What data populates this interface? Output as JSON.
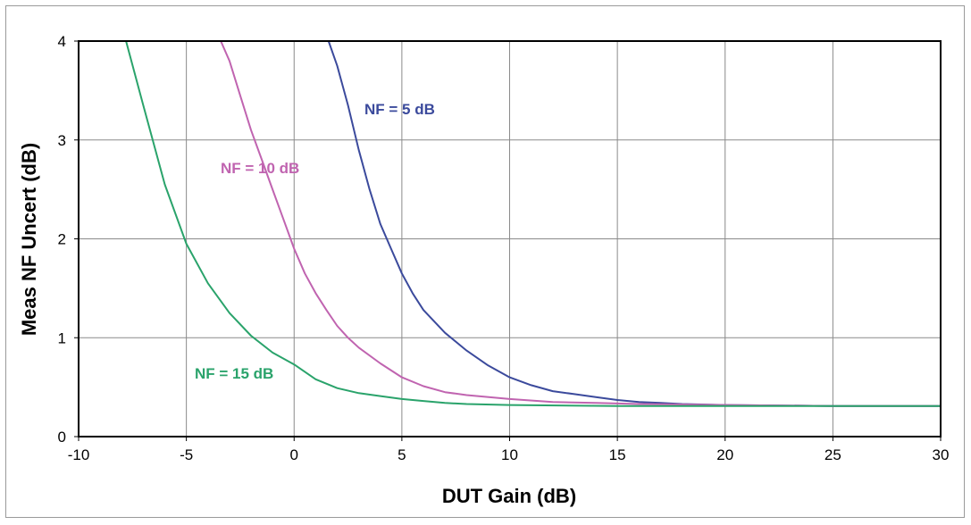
{
  "chart_data": {
    "type": "line",
    "title": "",
    "xlabel": "DUT Gain (dB)",
    "ylabel": "Meas NF Uncert (dB)",
    "xlim": [
      -10,
      30
    ],
    "ylim": [
      0,
      4
    ],
    "xticks": [
      -10,
      -5,
      0,
      5,
      10,
      15,
      20,
      25,
      30
    ],
    "yticks": [
      0,
      1,
      2,
      3,
      4
    ],
    "grid": true,
    "legend": "none",
    "series": [
      {
        "name": "NF = 5 dB",
        "color": "#3b4a9c",
        "x": [
          1.6,
          2,
          2.5,
          3,
          3.5,
          4,
          4.5,
          5,
          5.5,
          6,
          7,
          8,
          9,
          10,
          11,
          12,
          13,
          14,
          15,
          16,
          17,
          18,
          20,
          25,
          30
        ],
        "y": [
          4.0,
          3.75,
          3.35,
          2.9,
          2.5,
          2.15,
          1.9,
          1.65,
          1.45,
          1.28,
          1.05,
          0.87,
          0.72,
          0.6,
          0.52,
          0.46,
          0.43,
          0.4,
          0.37,
          0.35,
          0.34,
          0.33,
          0.32,
          0.31,
          0.31
        ]
      },
      {
        "name": "NF = 10 dB",
        "color": "#c064b0",
        "x": [
          -3.4,
          -3,
          -2.5,
          -2,
          -1.5,
          -1,
          -0.5,
          0,
          0.5,
          1,
          1.5,
          2,
          2.5,
          3,
          4,
          5,
          6,
          7,
          8,
          10,
          12,
          14,
          16,
          20,
          25,
          30
        ],
        "y": [
          4.0,
          3.8,
          3.45,
          3.1,
          2.8,
          2.5,
          2.2,
          1.9,
          1.65,
          1.45,
          1.28,
          1.12,
          1.0,
          0.9,
          0.74,
          0.6,
          0.51,
          0.45,
          0.42,
          0.38,
          0.35,
          0.34,
          0.33,
          0.32,
          0.31,
          0.31
        ]
      },
      {
        "name": "NF = 15 dB",
        "color": "#2aa36b",
        "x": [
          -7.8,
          -7,
          -6,
          -5,
          -4,
          -3,
          -2,
          -1,
          0,
          1,
          2,
          3,
          4,
          5,
          6,
          7,
          8,
          10,
          15,
          20,
          25,
          30
        ],
        "y": [
          4.0,
          3.35,
          2.55,
          1.95,
          1.55,
          1.25,
          1.02,
          0.85,
          0.73,
          0.58,
          0.49,
          0.44,
          0.41,
          0.38,
          0.36,
          0.34,
          0.33,
          0.32,
          0.31,
          0.31,
          0.31,
          0.31
        ]
      }
    ]
  }
}
